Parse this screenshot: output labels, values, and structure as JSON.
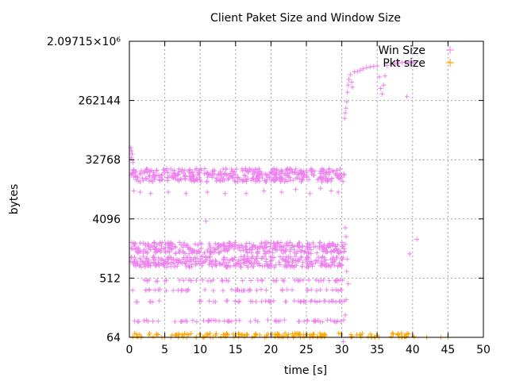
{
  "chart_data": {
    "type": "scatter",
    "title": "Client Paket Size and Window Size",
    "xlabel": "time [s]",
    "ylabel": "bytes",
    "xlim": [
      0,
      50
    ],
    "ylim": [
      64,
      2097152
    ],
    "yscale": "log2",
    "grid": true,
    "legend_position": "top-right",
    "x_ticks": [
      "0",
      "5",
      "10",
      "15",
      "20",
      "25",
      "30",
      "35",
      "40",
      "45",
      "50"
    ],
    "x_tick_values": [
      0,
      5,
      10,
      15,
      20,
      25,
      30,
      35,
      40,
      45,
      50
    ],
    "y_ticks": [
      "64",
      "512",
      "4096",
      "32768",
      "262144",
      "2.09715×10⁶"
    ],
    "y_tick_values": [
      64,
      512,
      4096,
      32768,
      262144,
      2097152
    ],
    "colors": {
      "win": "#ee82ee",
      "pkt": "#ffa500"
    },
    "series": [
      {
        "name": "Win Size",
        "marker": "plus",
        "bands": [
          {
            "x": [
              0.2,
              30.5
            ],
            "y": [
              15000,
              24000
            ],
            "note": "dense band"
          },
          {
            "x": [
              0.2,
              30.5
            ],
            "y": [
              1200,
              1800
            ]
          },
          {
            "x": [
              0.2,
              30.5
            ],
            "y": [
              750,
              1100
            ]
          },
          {
            "x": [
              0.2,
              30.5
            ],
            "y": [
              460,
              480
            ]
          },
          {
            "x": [
              0.2,
              30.5
            ],
            "y": [
              330,
              345
            ]
          },
          {
            "x": [
              0.2,
              30.5
            ],
            "y": [
              220,
              232
            ]
          },
          {
            "x": [
              0.2,
              30.5
            ],
            "y": [
              110,
              118
            ]
          }
        ],
        "points": [
          [
            0.2,
            50000
          ],
          [
            0.3,
            45000
          ],
          [
            0.4,
            40000
          ],
          [
            0.3,
            35000
          ],
          [
            0.5,
            30000
          ],
          [
            0.6,
            11000
          ],
          [
            1.5,
            10500
          ],
          [
            3.0,
            10000
          ],
          [
            5.5,
            10500
          ],
          [
            8.0,
            10000
          ],
          [
            11.0,
            10500
          ],
          [
            13.5,
            10000
          ],
          [
            16.5,
            10000
          ],
          [
            19.0,
            11000
          ],
          [
            21.5,
            10500
          ],
          [
            23.5,
            11500
          ],
          [
            25.5,
            10000
          ],
          [
            27.0,
            12000
          ],
          [
            28.5,
            11000
          ],
          [
            29.5,
            10500
          ],
          [
            10.8,
            3800
          ],
          [
            30.4,
            140000
          ],
          [
            30.5,
            170000
          ],
          [
            30.6,
            200000
          ],
          [
            30.7,
            250000
          ],
          [
            30.8,
            350000
          ],
          [
            30.9,
            450000
          ],
          [
            31.0,
            550000
          ],
          [
            31.2,
            650000
          ],
          [
            31.4,
            500000
          ],
          [
            31.5,
            420000
          ],
          [
            31.8,
            720000
          ],
          [
            32.2,
            720000
          ],
          [
            32.6,
            760000
          ],
          [
            33.0,
            800000
          ],
          [
            33.5,
            830000
          ],
          [
            34.0,
            850000
          ],
          [
            34.5,
            870000
          ],
          [
            35.0,
            880000
          ],
          [
            35.3,
            600000
          ],
          [
            35.5,
            400000
          ],
          [
            35.7,
            330000
          ],
          [
            35.9,
            450000
          ],
          [
            36.1,
            620000
          ],
          [
            36.4,
            900000
          ],
          [
            37.0,
            940000
          ],
          [
            37.5,
            960000
          ],
          [
            38.0,
            980000
          ],
          [
            38.5,
            990000
          ],
          [
            39.0,
            1000000
          ],
          [
            39.5,
            1000000
          ],
          [
            40.0,
            1010000
          ],
          [
            40.2,
            1000000
          ],
          [
            39.2,
            300000
          ],
          [
            39.6,
            1200
          ],
          [
            30.2,
            55
          ],
          [
            30.5,
            3000
          ],
          [
            30.6,
            2200
          ],
          [
            30.8,
            1000
          ],
          [
            30.7,
            650
          ],
          [
            30.9,
            420
          ],
          [
            30.6,
            240
          ],
          [
            30.5,
            140
          ],
          [
            40.6,
            2000
          ]
        ]
      },
      {
        "name": "Pkt size",
        "marker": "plus",
        "bands": [
          {
            "x": [
              0.2,
              40.2
            ],
            "y": [
              64,
              66
            ]
          },
          {
            "x": [
              0.2,
              40.2
            ],
            "y": [
              68,
              74
            ]
          }
        ],
        "points": [
          [
            42.0,
            64
          ],
          [
            44.0,
            64
          ],
          [
            45.0,
            64
          ],
          [
            45.3,
            1000000
          ]
        ]
      }
    ]
  }
}
